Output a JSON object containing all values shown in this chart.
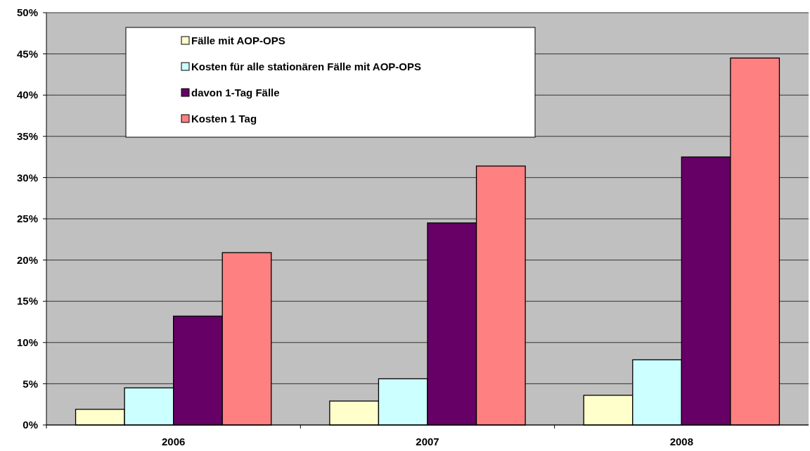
{
  "chart_data": {
    "type": "bar",
    "categories": [
      "2006",
      "2007",
      "2008"
    ],
    "series": [
      {
        "name": "Fälle mit AOP-OPS",
        "color": "#ffffcc",
        "values": [
          1.9,
          2.9,
          3.6
        ]
      },
      {
        "name": "Kosten für alle stationären Fälle mit AOP-OPS",
        "color": "#ccffff",
        "values": [
          4.5,
          5.6,
          7.9
        ]
      },
      {
        "name": "davon 1-Tag Fälle",
        "color": "#660066",
        "values": [
          13.2,
          24.5,
          32.5
        ]
      },
      {
        "name": "Kosten 1 Tag",
        "color": "#ff8080",
        "values": [
          20.9,
          31.4,
          44.5
        ]
      }
    ],
    "ylim": [
      0,
      50
    ],
    "yticks": [
      {
        "value": 0,
        "label": "0%"
      },
      {
        "value": 5,
        "label": "5%"
      },
      {
        "value": 10,
        "label": "10%"
      },
      {
        "value": 15,
        "label": "15%"
      },
      {
        "value": 20,
        "label": "20%"
      },
      {
        "value": 25,
        "label": "25%"
      },
      {
        "value": 30,
        "label": "30%"
      },
      {
        "value": 35,
        "label": "35%"
      },
      {
        "value": 40,
        "label": "40%"
      },
      {
        "value": 45,
        "label": "45%"
      },
      {
        "value": 50,
        "label": "50%"
      }
    ],
    "grid": "y",
    "legend": "top left"
  }
}
